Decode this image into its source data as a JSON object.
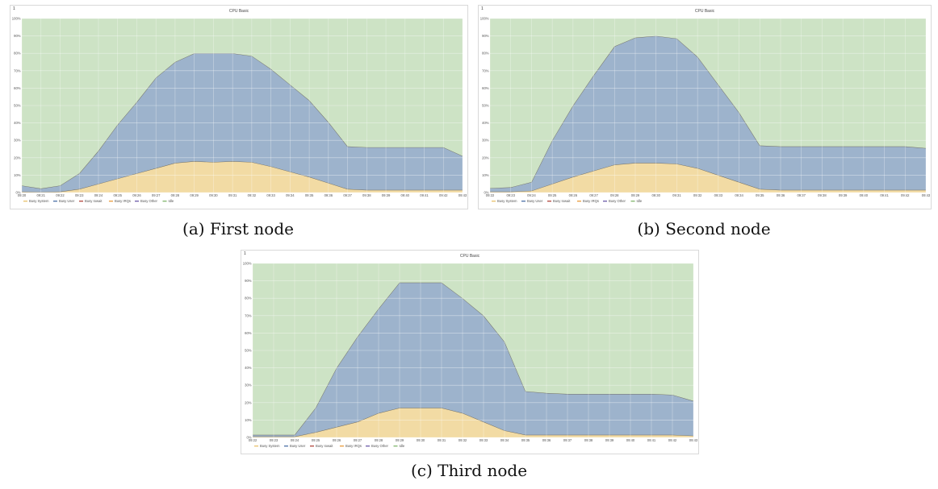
{
  "panels": [
    {
      "corner": "1",
      "caption": "(a) First node"
    },
    {
      "corner": "1",
      "caption": "(b) Second node"
    },
    {
      "corner": "1",
      "caption": "(c) Third node"
    }
  ],
  "chart_data": [
    {
      "type": "area",
      "stacked": true,
      "title": "CPU Basic",
      "ylim": [
        0,
        100
      ],
      "yticks": [
        "0%",
        "10%",
        "20%",
        "30%",
        "40%",
        "50%",
        "60%",
        "70%",
        "80%",
        "90%",
        "100%"
      ],
      "categories": [
        "09:20",
        "09:21",
        "09:22",
        "09:23",
        "09:24",
        "09:25",
        "09:26",
        "09:27",
        "09:28",
        "09:29",
        "09:30",
        "09:31",
        "09:32",
        "09:33",
        "09:34",
        "09:35",
        "09:36",
        "09:37",
        "09:38",
        "09:39",
        "09:40",
        "09:41",
        "09:42",
        "09:43"
      ],
      "legend": [
        "Busy System",
        "Busy User",
        "Busy Iowait",
        "Busy IRQs",
        "Busy Other",
        "Idle"
      ],
      "legend_position": "bottom-left",
      "grid": true,
      "series": [
        {
          "name": "Busy System",
          "color": "#f2dba4",
          "values": [
            0.5,
            0.3,
            0.5,
            2,
            5,
            8,
            11,
            14,
            17,
            18,
            17.5,
            18,
            17.5,
            15,
            12,
            9,
            5.5,
            2,
            1.5,
            1.5,
            1.5,
            1.5,
            1.5,
            1.5
          ]
        },
        {
          "name": "Busy User",
          "color": "#9db3cc",
          "values": [
            3.5,
            2,
            3.5,
            9,
            19,
            31,
            41,
            52,
            58,
            62,
            62.5,
            62,
            61,
            56,
            50,
            44,
            35,
            24.5,
            24.5,
            24.5,
            24.5,
            24.5,
            24.5,
            19.5
          ]
        },
        {
          "name": "Idle",
          "color": "#cde3c5",
          "values": [
            96,
            97.7,
            96,
            89,
            76,
            61,
            48,
            34,
            25,
            20,
            20,
            20,
            21.5,
            29,
            38,
            47,
            59.5,
            73.5,
            74,
            74,
            74,
            74,
            74,
            79
          ]
        }
      ]
    },
    {
      "type": "area",
      "stacked": true,
      "title": "CPU Basic",
      "ylim": [
        0,
        100
      ],
      "yticks": [
        "0%",
        "10%",
        "20%",
        "30%",
        "40%",
        "50%",
        "60%",
        "70%",
        "80%",
        "90%",
        "100%"
      ],
      "categories": [
        "09:22",
        "09:23",
        "09:24",
        "09:25",
        "09:26",
        "09:27",
        "09:28",
        "09:29",
        "09:30",
        "09:31",
        "09:32",
        "09:33",
        "09:34",
        "09:35",
        "09:36",
        "09:37",
        "09:38",
        "09:39",
        "09:40",
        "09:41",
        "09:42",
        "09:43"
      ],
      "legend": [
        "Busy System",
        "Busy User",
        "Busy Iowait",
        "Busy IRQs",
        "Busy Other",
        "Idle"
      ],
      "legend_position": "bottom-left",
      "grid": true,
      "series": [
        {
          "name": "Busy System",
          "color": "#f2dba4",
          "values": [
            0.5,
            0.5,
            1,
            5,
            9,
            12.5,
            16,
            17,
            17,
            16.5,
            14,
            10,
            6,
            2,
            1.5,
            1.5,
            1.5,
            1.5,
            1.5,
            1.5,
            1.5,
            1.5
          ]
        },
        {
          "name": "Busy User",
          "color": "#9db3cc",
          "values": [
            2,
            2.5,
            5,
            25,
            41,
            55,
            68,
            72,
            73,
            72,
            64,
            52,
            40,
            25,
            25,
            25,
            25,
            25,
            25,
            25,
            25,
            24
          ]
        },
        {
          "name": "Idle",
          "color": "#cde3c5",
          "values": [
            97.5,
            97,
            94,
            70,
            50,
            32.5,
            16,
            11,
            10,
            11.5,
            22,
            38,
            54,
            73,
            73.5,
            73.5,
            73.5,
            73.5,
            73.5,
            73.5,
            73.5,
            74.5
          ]
        }
      ]
    },
    {
      "type": "area",
      "stacked": true,
      "title": "CPU Basic",
      "ylim": [
        0,
        100
      ],
      "yticks": [
        "0%",
        "10%",
        "20%",
        "30%",
        "40%",
        "50%",
        "60%",
        "70%",
        "80%",
        "90%",
        "100%"
      ],
      "categories": [
        "09:22",
        "09:23",
        "09:24",
        "09:25",
        "09:26",
        "09:27",
        "09:28",
        "09:29",
        "09:30",
        "09:31",
        "09:32",
        "09:33",
        "09:34",
        "09:35",
        "09:36",
        "09:37",
        "09:38",
        "09:39",
        "09:40",
        "09:41",
        "09:42",
        "09:43"
      ],
      "legend": [
        "Busy System",
        "Busy User",
        "Busy Iowait",
        "Busy IRQs",
        "Busy Other",
        "Idle"
      ],
      "legend_position": "bottom-left",
      "grid": true,
      "series": [
        {
          "name": "Busy System",
          "color": "#f2dba4",
          "values": [
            0.5,
            0.5,
            0.5,
            3,
            6,
            9,
            14,
            17,
            17,
            17,
            14,
            9,
            4,
            1.5,
            1.5,
            1.5,
            1.5,
            1.5,
            1.5,
            1.5,
            1.5,
            1
          ]
        },
        {
          "name": "Busy User",
          "color": "#9db3cc",
          "values": [
            1,
            1,
            1,
            14,
            34,
            49,
            60,
            72,
            72,
            72,
            66,
            61,
            51,
            25,
            24,
            23.5,
            23.5,
            23.5,
            23.5,
            23.5,
            23,
            20
          ]
        },
        {
          "name": "Idle",
          "color": "#cde3c5",
          "values": [
            98.5,
            98.5,
            98.5,
            83,
            60,
            42,
            26,
            11,
            11,
            11,
            20,
            30,
            45,
            73.5,
            74.5,
            75,
            75,
            75,
            75,
            75,
            75.5,
            79
          ]
        }
      ]
    }
  ]
}
